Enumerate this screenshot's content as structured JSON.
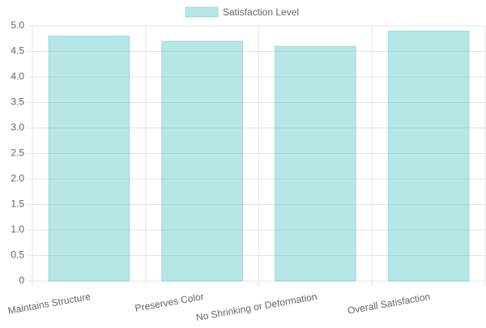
{
  "chart_data": {
    "type": "bar",
    "categories": [
      "Maintains Structure",
      "Preserves Color",
      "No Shrinking or Deformation",
      "Overall Satisfaction"
    ],
    "series": [
      {
        "name": "Satisfaction Level",
        "color": "rgba(75,192,192,0.4)",
        "values": [
          4.8,
          4.7,
          4.6,
          4.9
        ]
      }
    ],
    "ylim": [
      0,
      5
    ],
    "yticks": [
      0,
      0.5,
      {
        "value": 1,
        "label": "1.0"
      },
      1.5,
      {
        "value": 2,
        "label": "2.0"
      },
      2.5,
      {
        "value": 3,
        "label": "3.0"
      },
      3.5,
      {
        "value": 4,
        "label": "4.0"
      },
      4.5,
      {
        "value": 5,
        "label": "5.0"
      }
    ],
    "grid": true,
    "legend": "top"
  }
}
